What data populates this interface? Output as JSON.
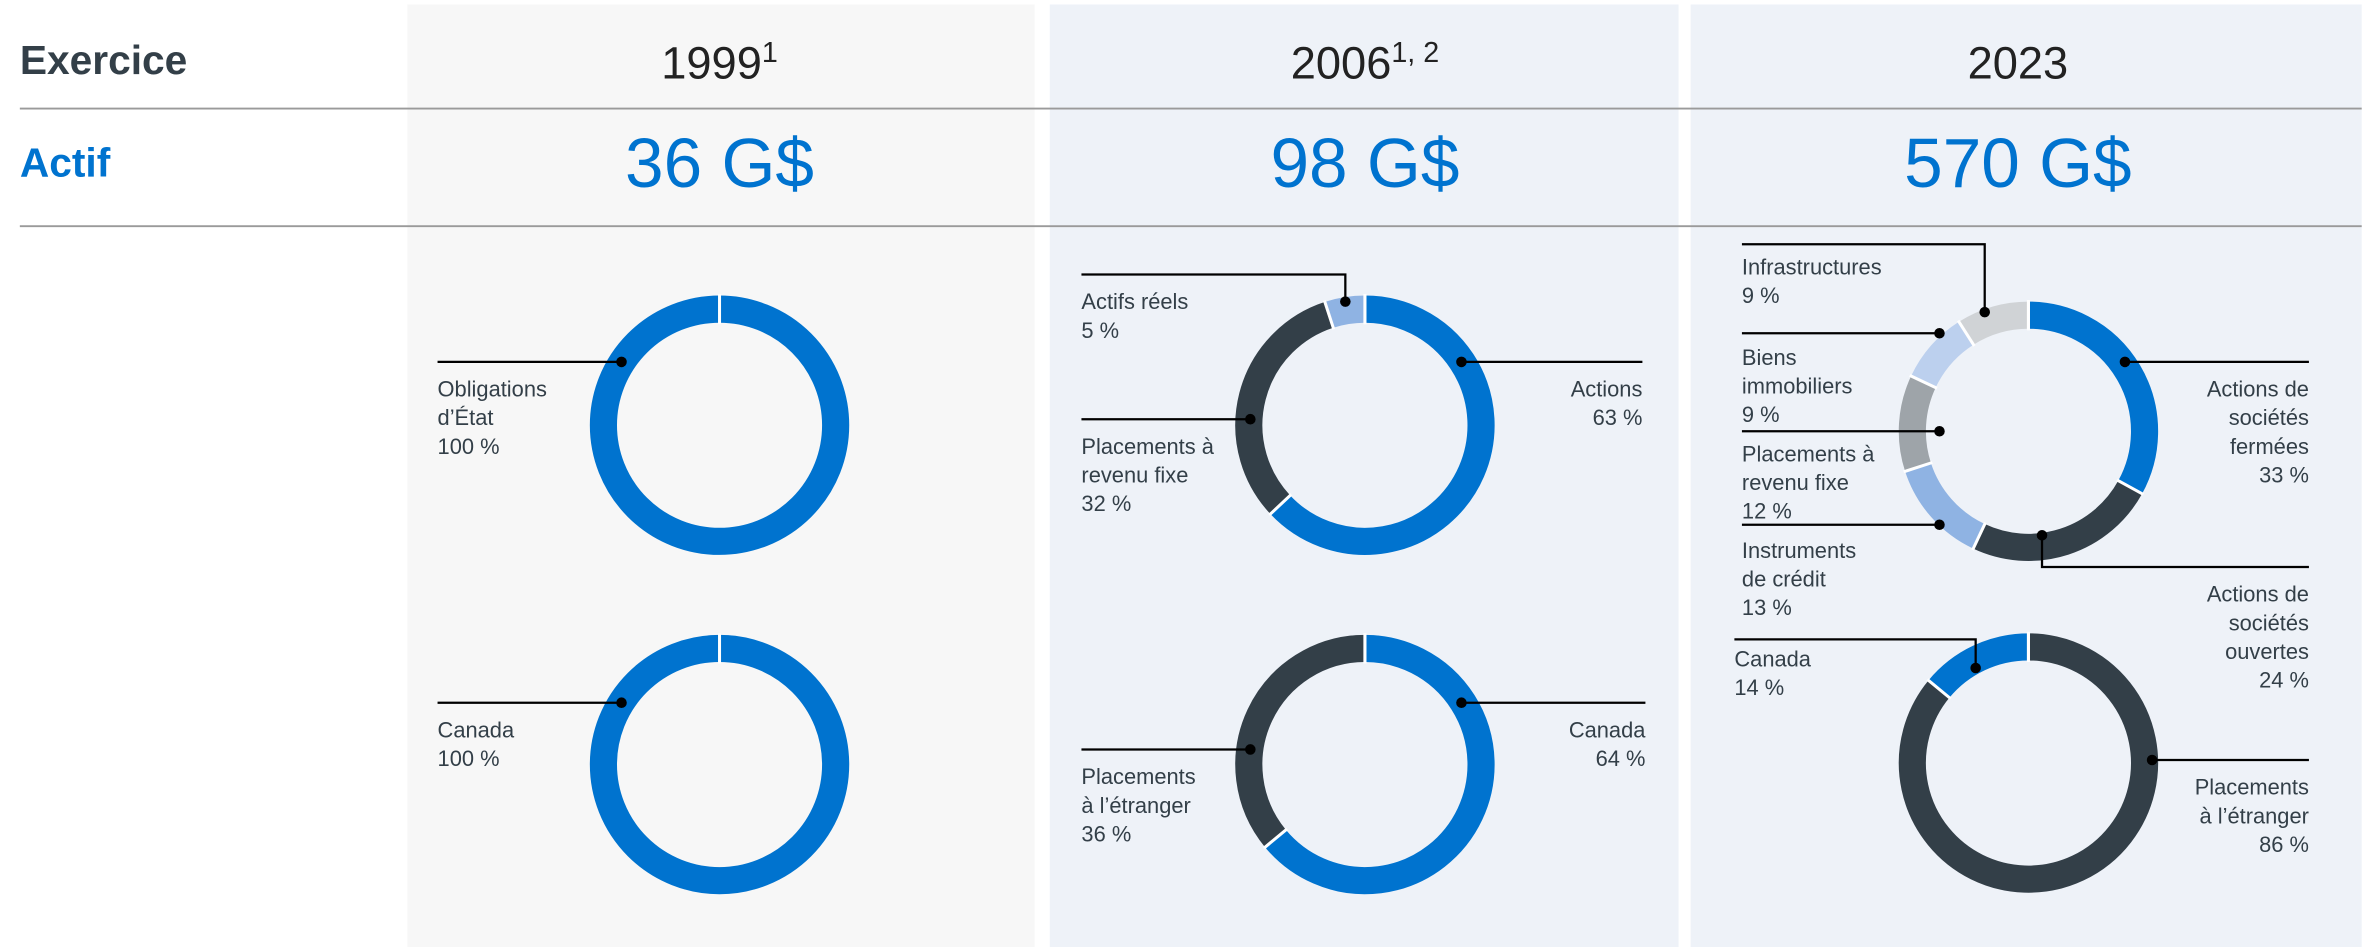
{
  "header": {
    "year_label": "Exercice",
    "assets_label": "Actif"
  },
  "columns": [
    {
      "year": "1999",
      "note": "1",
      "assets": "36 G$"
    },
    {
      "year": "2006",
      "note": "1, 2",
      "assets": "98 G$"
    },
    {
      "year": "2023",
      "assets": "570 G$"
    }
  ],
  "chart_data": [
    {
      "type": "pie",
      "donut": true,
      "categories": [
        "Obligations\nd’État"
      ],
      "values": [
        100
      ],
      "value_labels": [
        "100 %"
      ],
      "colors": [
        "#0073cf"
      ]
    },
    {
      "type": "pie",
      "donut": true,
      "categories": [
        "Actions",
        "Placements à\nrevenu fixe",
        "Actifs réels"
      ],
      "values": [
        63,
        32,
        5
      ],
      "value_labels": [
        "63 %",
        "32 %",
        "5 %"
      ],
      "colors": [
        "#0073cf",
        "#333f48",
        "#8fb3e3"
      ]
    },
    {
      "type": "pie",
      "donut": true,
      "categories": [
        "Actions de\nsociétés\nfermées",
        "Actions de\nsociétés\nouvertes",
        "Instruments\nde crédit",
        "Placements à\nrevenu fixe",
        "Biens\nimmobiliers",
        "Infrastructures"
      ],
      "values": [
        33,
        24,
        13,
        12,
        9,
        9
      ],
      "value_labels": [
        "33 %",
        "24 %",
        "13 %",
        "12 %",
        "9 %",
        "9 %"
      ],
      "colors": [
        "#0073cf",
        "#333f48",
        "#8fb3e3",
        "#9ea4a9",
        "#bcd0ee",
        "#d0d3d6"
      ]
    },
    {
      "type": "pie",
      "donut": true,
      "categories": [
        "Canada"
      ],
      "values": [
        100
      ],
      "value_labels": [
        "100 %"
      ],
      "colors": [
        "#0073cf"
      ]
    },
    {
      "type": "pie",
      "donut": true,
      "categories": [
        "Canada",
        "Placements\nà l’étranger"
      ],
      "values": [
        64,
        36
      ],
      "value_labels": [
        "64 %",
        "36 %"
      ],
      "colors": [
        "#0073cf",
        "#333f48"
      ]
    },
    {
      "type": "pie",
      "donut": true,
      "categories": [
        "Placements\nà l’étranger",
        "Canada"
      ],
      "values": [
        86,
        14
      ],
      "value_labels": [
        "86 %",
        "14 %"
      ],
      "colors": [
        "#333f48",
        "#0073cf"
      ]
    }
  ]
}
